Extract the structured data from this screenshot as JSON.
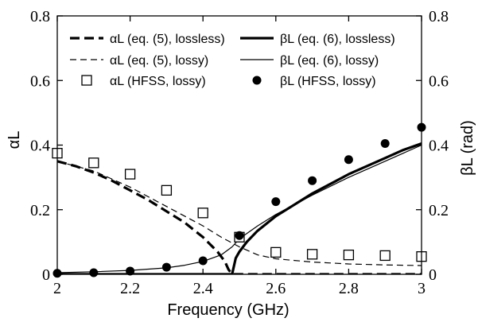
{
  "chart_data": {
    "type": "line",
    "xlabel": "Frequency (GHz)",
    "ylabel_left": "αL",
    "ylabel_right": "βL (rad)",
    "xlim": [
      2,
      3
    ],
    "ylim_left": [
      0,
      0.8
    ],
    "ylim_right": [
      0,
      0.8
    ],
    "x_ticks": [
      2,
      2.2,
      2.4,
      2.6,
      2.8,
      3
    ],
    "x_tick_labels": [
      "2",
      "2.2",
      "2.4",
      "2.6",
      "2.8",
      "3"
    ],
    "y_ticks": [
      0,
      0.2,
      0.4,
      0.6,
      0.8
    ],
    "y_tick_labels": [
      "0",
      "0.2",
      "0.4",
      "0.6",
      "0.8"
    ],
    "grid": false,
    "legend_position": "top",
    "series": [
      {
        "name": "αL (eq. (5), lossless)",
        "style": "thick-dashed",
        "color": "#000000",
        "x": [
          2.0,
          2.05,
          2.1,
          2.15,
          2.2,
          2.25,
          2.3,
          2.35,
          2.4,
          2.44,
          2.46,
          2.47,
          2.48,
          2.5,
          2.6,
          2.7,
          2.8,
          2.9,
          3.0
        ],
        "y": [
          0.35,
          0.335,
          0.315,
          0.29,
          0.26,
          0.23,
          0.195,
          0.16,
          0.115,
          0.07,
          0.04,
          0.015,
          0.0,
          0.0,
          0.0,
          0.0,
          0.0,
          0.0,
          0.0
        ]
      },
      {
        "name": "αL (eq. (5), lossy)",
        "style": "thin-dashed",
        "color": "#000000",
        "x": [
          2.0,
          2.1,
          2.2,
          2.3,
          2.4,
          2.45,
          2.5,
          2.55,
          2.6,
          2.7,
          2.8,
          2.9,
          3.0
        ],
        "y": [
          0.35,
          0.32,
          0.27,
          0.21,
          0.15,
          0.115,
          0.085,
          0.06,
          0.048,
          0.038,
          0.032,
          0.029,
          0.027
        ]
      },
      {
        "name": "βL (eq. (6), lossless)",
        "style": "thick-solid",
        "color": "#000000",
        "x": [
          2.0,
          2.2,
          2.4,
          2.47,
          2.48,
          2.49,
          2.5,
          2.52,
          2.55,
          2.6,
          2.65,
          2.7,
          2.75,
          2.8,
          2.85,
          2.9,
          2.95,
          3.0
        ],
        "y": [
          0.0,
          0.0,
          0.0,
          0.0,
          0.0,
          0.05,
          0.07,
          0.1,
          0.135,
          0.18,
          0.215,
          0.25,
          0.28,
          0.31,
          0.335,
          0.36,
          0.385,
          0.405
        ]
      },
      {
        "name": "βL (eq. (6), lossy)",
        "style": "thin-solid",
        "color": "#000000",
        "x": [
          2.0,
          2.1,
          2.2,
          2.3,
          2.35,
          2.4,
          2.45,
          2.48,
          2.5,
          2.55,
          2.6,
          2.7,
          2.8,
          2.9,
          3.0
        ],
        "y": [
          0.005,
          0.008,
          0.012,
          0.02,
          0.028,
          0.04,
          0.06,
          0.085,
          0.11,
          0.15,
          0.185,
          0.245,
          0.3,
          0.35,
          0.4
        ]
      },
      {
        "name": "αL (HFSS, lossy)",
        "style": "open-square",
        "color": "#000000",
        "x": [
          2.0,
          2.1,
          2.2,
          2.3,
          2.4,
          2.5,
          2.6,
          2.7,
          2.8,
          2.9,
          3.0
        ],
        "y": [
          0.375,
          0.345,
          0.31,
          0.26,
          0.19,
          0.115,
          0.068,
          0.062,
          0.06,
          0.058,
          0.055
        ]
      },
      {
        "name": "βL (HFSS, lossy)",
        "style": "filled-circle",
        "color": "#000000",
        "x": [
          2.0,
          2.1,
          2.2,
          2.3,
          2.4,
          2.5,
          2.6,
          2.7,
          2.8,
          2.9,
          3.0
        ],
        "y": [
          0.003,
          0.005,
          0.01,
          0.022,
          0.042,
          0.12,
          0.225,
          0.29,
          0.355,
          0.405,
          0.455
        ]
      }
    ]
  }
}
